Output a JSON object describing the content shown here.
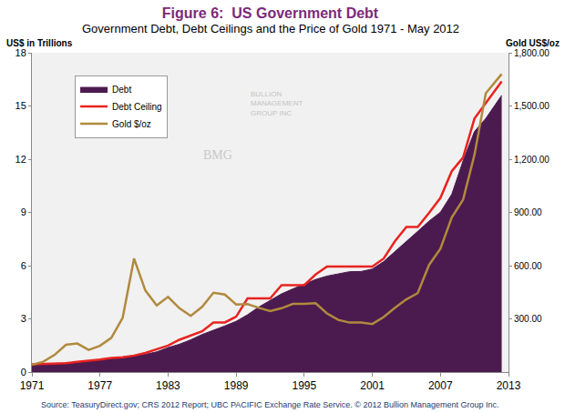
{
  "chart_data": {
    "type": "line",
    "title": "Figure 6:  US Government Debt",
    "subtitle": "Government Debt, Debt Ceilings and the Price of Gold 1971 - May 2012",
    "ylabel": "US$ in Trillions",
    "y2label": "Gold US$/oz",
    "source": "Source: TeasuryDirect.gov; CRS 2012 Report; UBC PACIFIC Exchange Rate Service. © 2012 Bullion Management Group Inc.",
    "watermark": [
      "BULLION",
      "MANAGEMENT",
      "GROUP INC",
      "BMG"
    ],
    "x": [
      1971,
      1972,
      1973,
      1974,
      1975,
      1976,
      1977,
      1978,
      1979,
      1980,
      1981,
      1982,
      1983,
      1984,
      1985,
      1986,
      1987,
      1988,
      1989,
      1990,
      1991,
      1992,
      1993,
      1994,
      1995,
      1996,
      1997,
      1998,
      1999,
      2000,
      2001,
      2002,
      2003,
      2004,
      2005,
      2006,
      2007,
      2008,
      2009,
      2010,
      2011,
      2012.4
    ],
    "xlim": [
      1971,
      2013
    ],
    "xticks": [
      1971,
      1977,
      1983,
      1989,
      1995,
      2001,
      2007,
      2013
    ],
    "ylim": [
      0,
      18
    ],
    "yticks": [
      0,
      3,
      6,
      9,
      12,
      15,
      18
    ],
    "y2lim": [
      0,
      1800
    ],
    "y2ticks": [
      {
        "value": 300,
        "label": "300.00"
      },
      {
        "value": 600,
        "label": "600.00"
      },
      {
        "value": 900,
        "label": "900.00"
      },
      {
        "value": 1200,
        "label": "1,200.00"
      },
      {
        "value": 1500,
        "label": "1,500.00"
      },
      {
        "value": 1800,
        "label": "1,800.00"
      }
    ],
    "grid": false,
    "legend": "top left",
    "series": [
      {
        "name": "Debt",
        "type": "area",
        "color": "#4b1a4f",
        "values": [
          0.4,
          0.43,
          0.46,
          0.48,
          0.54,
          0.63,
          0.7,
          0.78,
          0.83,
          0.91,
          1.0,
          1.14,
          1.38,
          1.57,
          1.82,
          2.12,
          2.35,
          2.6,
          2.86,
          3.23,
          3.67,
          4.06,
          4.41,
          4.69,
          4.97,
          5.22,
          5.41,
          5.53,
          5.66,
          5.67,
          5.81,
          6.23,
          6.78,
          7.38,
          7.93,
          8.51,
          9.01,
          10.02,
          11.91,
          13.56,
          14.3,
          15.6
        ]
      },
      {
        "name": "Debt Ceiling",
        "type": "line",
        "color": "#e8231f",
        "values": [
          0.43,
          0.45,
          0.47,
          0.5,
          0.58,
          0.64,
          0.7,
          0.8,
          0.83,
          0.93,
          1.08,
          1.29,
          1.49,
          1.82,
          2.08,
          2.3,
          2.8,
          2.8,
          3.12,
          4.15,
          4.15,
          4.15,
          4.9,
          4.9,
          4.9,
          5.5,
          5.95,
          5.95,
          5.95,
          5.95,
          5.95,
          6.4,
          7.38,
          8.18,
          8.18,
          8.97,
          9.82,
          11.32,
          12.1,
          14.29,
          15.19,
          16.39
        ]
      },
      {
        "name": "Gold $/oz",
        "type": "line",
        "color": "#b08a3e",
        "axis": "y2",
        "values": [
          41,
          58,
          97,
          154,
          161,
          125,
          148,
          193,
          306,
          640,
          460,
          376,
          424,
          360,
          317,
          368,
          447,
          437,
          381,
          383,
          362,
          344,
          360,
          384,
          384,
          388,
          331,
          294,
          279,
          279,
          271,
          310,
          363,
          410,
          445,
          604,
          695,
          872,
          972,
          1225,
          1572,
          1680
        ]
      }
    ]
  }
}
